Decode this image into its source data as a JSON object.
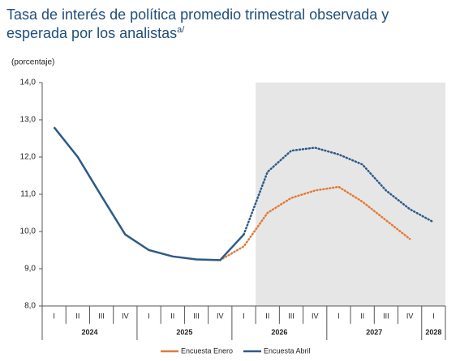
{
  "chart_data": {
    "type": "line",
    "title": "Tasa de interés de política promedio trimestral observada y",
    "title_line2": "esperada por los analistas",
    "title_note": "a/",
    "ylabel": "(porcentaje)",
    "categories": [
      "I",
      "II",
      "III",
      "IV",
      "I",
      "II",
      "III",
      "IV",
      "I",
      "II",
      "III",
      "IV",
      "I",
      "II",
      "III",
      "IV",
      "I"
    ],
    "years": [
      "2024",
      "2025",
      "2026",
      "2027",
      "2028"
    ],
    "ylim": [
      8,
      14
    ],
    "yticks": [
      {
        "value": 8,
        "label": "8,0"
      },
      {
        "value": 9,
        "label": "9,0"
      },
      {
        "value": 10,
        "label": "10,0"
      },
      {
        "value": 11,
        "label": "11,0"
      },
      {
        "value": 12,
        "label": "12,0"
      },
      {
        "value": 13,
        "label": "13,0"
      },
      {
        "value": 14,
        "label": "14,0"
      }
    ],
    "series": [
      {
        "name": "Encuesta Enero",
        "color": "#e07b39",
        "dotted_from": 7,
        "values": [
          null,
          null,
          null,
          null,
          null,
          null,
          null,
          9.23,
          9.6,
          10.5,
          10.9,
          11.1,
          11.2,
          10.8,
          10.3,
          9.8,
          null
        ]
      },
      {
        "name": "Encuesta Abril",
        "color": "#2e5a87",
        "dotted_from": 8,
        "values": [
          12.8,
          12.0,
          10.95,
          9.92,
          9.5,
          9.33,
          9.25,
          9.23,
          9.92,
          11.6,
          12.17,
          12.25,
          12.07,
          11.8,
          11.1,
          10.6,
          10.25
        ]
      }
    ]
  }
}
